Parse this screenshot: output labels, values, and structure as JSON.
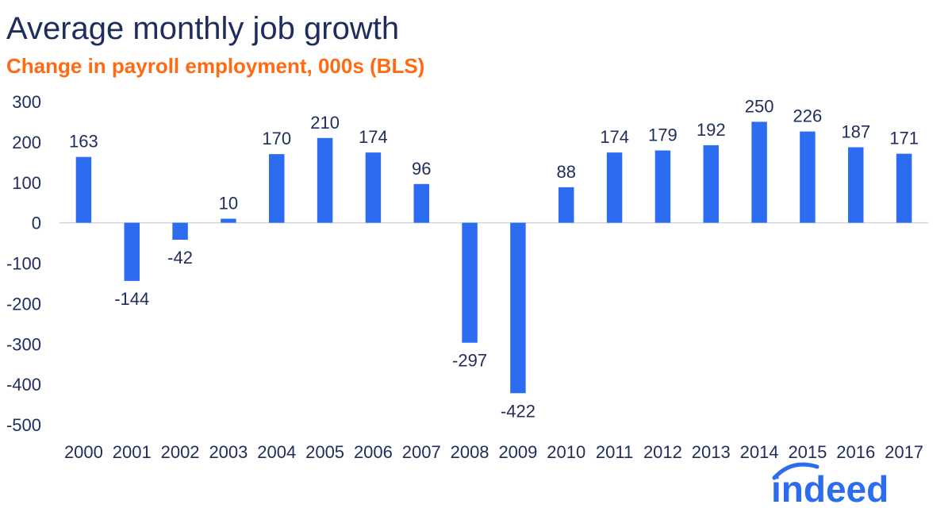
{
  "header": {
    "title": "Average monthly job growth",
    "subtitle": "Change in payroll employment, 000s (BLS)"
  },
  "logo": {
    "text": "indeed"
  },
  "colors": {
    "bar": "#2b6cf0",
    "title": "#1f2d5c",
    "subtitle": "#ff6a13",
    "text": "#1f2d5c"
  },
  "chart_data": {
    "type": "bar",
    "title": "Average monthly job growth",
    "subtitle": "Change in payroll employment, 000s (BLS)",
    "xlabel": "",
    "ylabel": "",
    "categories": [
      "2000",
      "2001",
      "2002",
      "2003",
      "2004",
      "2005",
      "2006",
      "2007",
      "2008",
      "2009",
      "2010",
      "2011",
      "2012",
      "2013",
      "2014",
      "2015",
      "2016",
      "2017"
    ],
    "values": [
      163,
      -144,
      -42,
      10,
      170,
      210,
      174,
      96,
      -297,
      -422,
      88,
      174,
      179,
      192,
      250,
      226,
      187,
      171
    ],
    "data_labels": [
      "163",
      "-144",
      "-42",
      "10",
      "170",
      "210",
      "174",
      "96",
      "-297",
      "-422",
      "88",
      "174",
      "179",
      "192",
      "250",
      "226",
      "187",
      "171"
    ],
    "ylim": [
      -500,
      300
    ],
    "yticks": [
      300,
      200,
      100,
      0,
      -100,
      -200,
      -300,
      -400,
      -500
    ],
    "grid": false,
    "legend": "none"
  }
}
